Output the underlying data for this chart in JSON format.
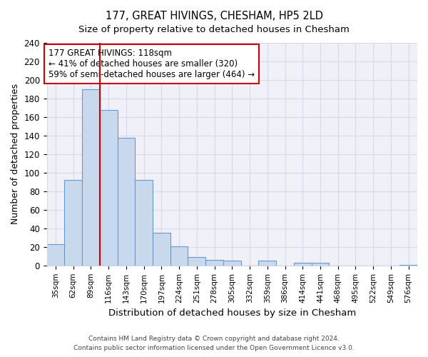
{
  "title": "177, GREAT HIVINGS, CHESHAM, HP5 2LD",
  "subtitle": "Size of property relative to detached houses in Chesham",
  "xlabel": "Distribution of detached houses by size in Chesham",
  "ylabel": "Number of detached properties",
  "bar_labels": [
    "35sqm",
    "62sqm",
    "89sqm",
    "116sqm",
    "143sqm",
    "170sqm",
    "197sqm",
    "224sqm",
    "251sqm",
    "278sqm",
    "305sqm",
    "332sqm",
    "359sqm",
    "386sqm",
    "414sqm",
    "441sqm",
    "468sqm",
    "495sqm",
    "522sqm",
    "549sqm",
    "576sqm"
  ],
  "bar_values": [
    23,
    92,
    190,
    168,
    138,
    92,
    35,
    21,
    9,
    6,
    5,
    0,
    5,
    0,
    3,
    3,
    0,
    0,
    0,
    0,
    1
  ],
  "bar_color": "#c8d9ee",
  "bar_edge_color": "#6699cc",
  "vline_index": 2.5,
  "vline_color": "#cc0000",
  "annotation_text": "177 GREAT HIVINGS: 118sqm\n← 41% of detached houses are smaller (320)\n59% of semi-detached houses are larger (464) →",
  "annotation_box_color": "white",
  "annotation_box_edge": "#cc0000",
  "ylim": [
    0,
    240
  ],
  "yticks": [
    0,
    20,
    40,
    60,
    80,
    100,
    120,
    140,
    160,
    180,
    200,
    220,
    240
  ],
  "footer_line1": "Contains HM Land Registry data © Crown copyright and database right 2024.",
  "footer_line2": "Contains public sector information licensed under the Open Government Licence v3.0.",
  "grid_color": "#d8d8e8",
  "bg_color": "#f0f0f8",
  "figsize": [
    6.0,
    5.0
  ],
  "dpi": 100
}
